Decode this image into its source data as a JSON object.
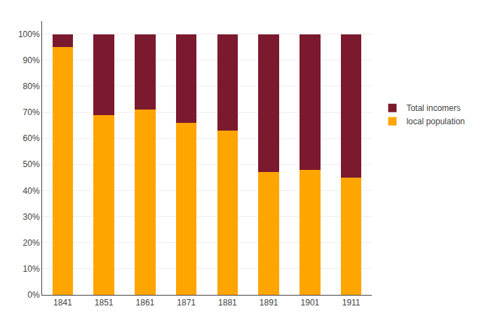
{
  "chart_data": {
    "type": "bar",
    "stacked": true,
    "categories": [
      "1841",
      "1851",
      "1861",
      "1871",
      "1881",
      "1891",
      "1901",
      "1911"
    ],
    "series": [
      {
        "name": "local population",
        "color": "#FFA500",
        "values": [
          95,
          69,
          71,
          66,
          63,
          47,
          48,
          45
        ]
      },
      {
        "name": "Total incomers",
        "color": "#7B1A2E",
        "values": [
          5,
          31,
          29,
          34,
          37,
          53,
          52,
          55
        ]
      }
    ],
    "ylim": [
      0,
      105
    ],
    "yticks": [
      {
        "value": 0,
        "label": "0%"
      },
      {
        "value": 10,
        "label": "10%"
      },
      {
        "value": 20,
        "label": "20%"
      },
      {
        "value": 30,
        "label": "30%"
      },
      {
        "value": 40,
        "label": "40%"
      },
      {
        "value": 50,
        "label": "50%"
      },
      {
        "value": 60,
        "label": "60%"
      },
      {
        "value": 70,
        "label": "70%"
      },
      {
        "value": 80,
        "label": "80%"
      },
      {
        "value": 90,
        "label": "90%"
      },
      {
        "value": 100,
        "label": "100%"
      }
    ],
    "grid": true,
    "legend": "right"
  }
}
